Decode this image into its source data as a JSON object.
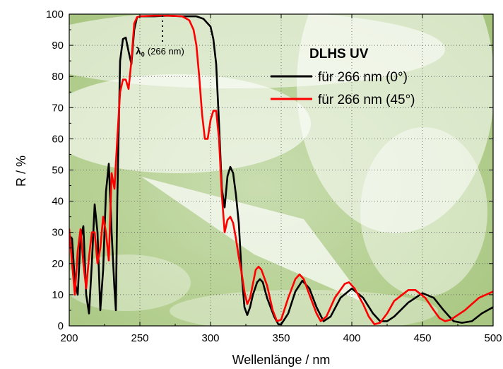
{
  "chart_data": {
    "type": "line",
    "title": "",
    "xlabel": "Wellenlänge / nm",
    "ylabel": "R / %",
    "xlim": [
      200,
      500
    ],
    "ylim": [
      0,
      100
    ],
    "xticks": [
      200,
      250,
      300,
      350,
      400,
      450,
      500
    ],
    "yticks": [
      0,
      10,
      20,
      30,
      40,
      50,
      60,
      70,
      80,
      90,
      100
    ],
    "grid": true,
    "legend": {
      "title": "DLHS UV",
      "position": "upper-right",
      "entries": [
        "für 266 nm (0°)",
        "für 266 nm (45°)"
      ]
    },
    "annotations": [
      {
        "label": "λ",
        "subscript": "0",
        "suffix": "(266 nm)",
        "x": 266
      }
    ],
    "colors": {
      "series_0": "#000000",
      "series_1": "#ff0000"
    },
    "series": [
      {
        "name": "für 266 nm (0°)",
        "points": [
          [
            200,
            29
          ],
          [
            202,
            28
          ],
          [
            204,
            14
          ],
          [
            206,
            10
          ],
          [
            208,
            28
          ],
          [
            210,
            32
          ],
          [
            212,
            10
          ],
          [
            214,
            4
          ],
          [
            216,
            20
          ],
          [
            218,
            39
          ],
          [
            220,
            30
          ],
          [
            222,
            5
          ],
          [
            224,
            18
          ],
          [
            226,
            43
          ],
          [
            228,
            52
          ],
          [
            230,
            30
          ],
          [
            232,
            12
          ],
          [
            233,
            5
          ],
          [
            234,
            40
          ],
          [
            236,
            85
          ],
          [
            238,
            92
          ],
          [
            240,
            92.5
          ],
          [
            242,
            88
          ],
          [
            244,
            84
          ],
          [
            246,
            95
          ],
          [
            248,
            99
          ],
          [
            250,
            99.3
          ],
          [
            260,
            99.3
          ],
          [
            270,
            99.5
          ],
          [
            280,
            99.3
          ],
          [
            290,
            99.3
          ],
          [
            295,
            98.5
          ],
          [
            298,
            97
          ],
          [
            300,
            96
          ],
          [
            302,
            92
          ],
          [
            304,
            84
          ],
          [
            306,
            65
          ],
          [
            308,
            44
          ],
          [
            310,
            38
          ],
          [
            312,
            48
          ],
          [
            314,
            51
          ],
          [
            316,
            49
          ],
          [
            318,
            42
          ],
          [
            320,
            33
          ],
          [
            322,
            17
          ],
          [
            324,
            6
          ],
          [
            326,
            3.5
          ],
          [
            328,
            6
          ],
          [
            330,
            10
          ],
          [
            333,
            14
          ],
          [
            335,
            15
          ],
          [
            337,
            14
          ],
          [
            340,
            9
          ],
          [
            345,
            3
          ],
          [
            348,
            0.5
          ],
          [
            350,
            0.5
          ],
          [
            355,
            4
          ],
          [
            360,
            11
          ],
          [
            365,
            14.5
          ],
          [
            370,
            12
          ],
          [
            375,
            6
          ],
          [
            380,
            1.5
          ],
          [
            385,
            3
          ],
          [
            392,
            9
          ],
          [
            400,
            12
          ],
          [
            408,
            9
          ],
          [
            415,
            4
          ],
          [
            420,
            1.5
          ],
          [
            425,
            1.5
          ],
          [
            430,
            3
          ],
          [
            440,
            7.5
          ],
          [
            450,
            10.5
          ],
          [
            458,
            9
          ],
          [
            465,
            5
          ],
          [
            472,
            1.5
          ],
          [
            478,
            1
          ],
          [
            485,
            1.5
          ],
          [
            492,
            4
          ],
          [
            500,
            6
          ]
        ]
      },
      {
        "name": "für 266 nm (45°)",
        "points": [
          [
            200,
            31
          ],
          [
            202,
            20
          ],
          [
            204,
            10
          ],
          [
            206,
            24
          ],
          [
            208,
            31
          ],
          [
            210,
            20
          ],
          [
            212,
            12
          ],
          [
            214,
            22
          ],
          [
            216,
            30
          ],
          [
            218,
            30
          ],
          [
            220,
            20
          ],
          [
            222,
            25
          ],
          [
            224,
            35
          ],
          [
            226,
            30
          ],
          [
            228,
            21
          ],
          [
            230,
            49
          ],
          [
            232,
            44
          ],
          [
            234,
            60
          ],
          [
            236,
            75
          ],
          [
            238,
            79
          ],
          [
            240,
            79
          ],
          [
            242,
            76
          ],
          [
            244,
            85
          ],
          [
            246,
            97
          ],
          [
            248,
            99
          ],
          [
            250,
            99.3
          ],
          [
            260,
            99.5
          ],
          [
            270,
            99.5
          ],
          [
            280,
            99.3
          ],
          [
            285,
            98
          ],
          [
            288,
            95
          ],
          [
            290,
            90
          ],
          [
            292,
            80
          ],
          [
            294,
            68
          ],
          [
            296,
            60
          ],
          [
            298,
            60
          ],
          [
            300,
            66
          ],
          [
            302,
            69
          ],
          [
            304,
            69
          ],
          [
            306,
            60
          ],
          [
            308,
            42
          ],
          [
            310,
            30
          ],
          [
            312,
            34
          ],
          [
            314,
            35
          ],
          [
            316,
            33
          ],
          [
            318,
            28
          ],
          [
            320,
            22
          ],
          [
            322,
            17
          ],
          [
            324,
            11
          ],
          [
            326,
            7
          ],
          [
            328,
            9
          ],
          [
            332,
            18
          ],
          [
            334,
            19
          ],
          [
            336,
            18
          ],
          [
            340,
            13
          ],
          [
            344,
            5
          ],
          [
            347,
            1.5
          ],
          [
            350,
            2
          ],
          [
            355,
            9
          ],
          [
            360,
            15
          ],
          [
            363,
            16.5
          ],
          [
            366,
            15
          ],
          [
            370,
            10
          ],
          [
            375,
            4
          ],
          [
            378,
            1.5
          ],
          [
            382,
            3
          ],
          [
            388,
            9
          ],
          [
            395,
            13.5
          ],
          [
            398,
            14
          ],
          [
            402,
            12
          ],
          [
            408,
            7
          ],
          [
            412,
            3
          ],
          [
            416,
            0.5
          ],
          [
            420,
            1
          ],
          [
            425,
            4
          ],
          [
            430,
            8
          ],
          [
            440,
            11.5
          ],
          [
            445,
            11.5
          ],
          [
            452,
            9
          ],
          [
            458,
            5
          ],
          [
            462,
            2.5
          ],
          [
            466,
            1.5
          ],
          [
            470,
            2
          ],
          [
            480,
            5
          ],
          [
            490,
            9
          ],
          [
            500,
            11
          ]
        ]
      }
    ]
  }
}
